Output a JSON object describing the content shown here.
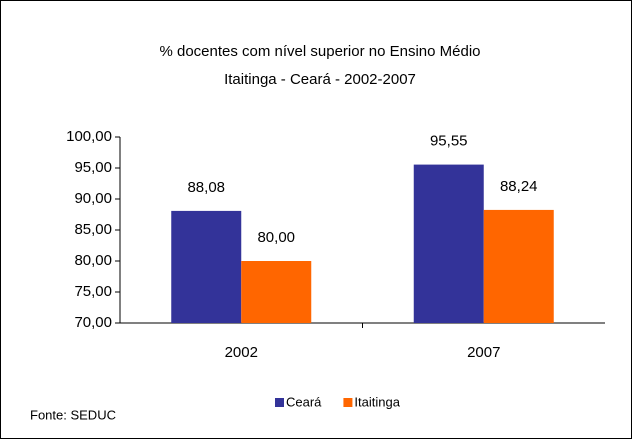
{
  "chart_data": {
    "type": "bar",
    "title": "% docentes com nível superior no Ensino Médio",
    "subtitle": "Itaitinga - Ceará - 2002-2007",
    "categories": [
      "2002",
      "2007"
    ],
    "series": [
      {
        "name": "Ceará",
        "color": "#333399",
        "values": [
          88.08,
          95.55
        ],
        "value_labels": [
          "88,08",
          "95,55"
        ]
      },
      {
        "name": "Itaitinga",
        "color": "#ff6600",
        "values": [
          80.0,
          88.24
        ],
        "value_labels": [
          "80,00",
          "88,24"
        ]
      }
    ],
    "ylim": [
      70,
      100
    ],
    "yticks": [
      {
        "value": 70,
        "label": "70,00"
      },
      {
        "value": 75,
        "label": "75,00"
      },
      {
        "value": 80,
        "label": "80,00"
      },
      {
        "value": 85,
        "label": "85,00"
      },
      {
        "value": 90,
        "label": "90,00"
      },
      {
        "value": 95,
        "label": "95,00"
      },
      {
        "value": 100,
        "label": "100,00"
      }
    ],
    "legend": "bottom",
    "source": "Fonte: SEDUC"
  }
}
